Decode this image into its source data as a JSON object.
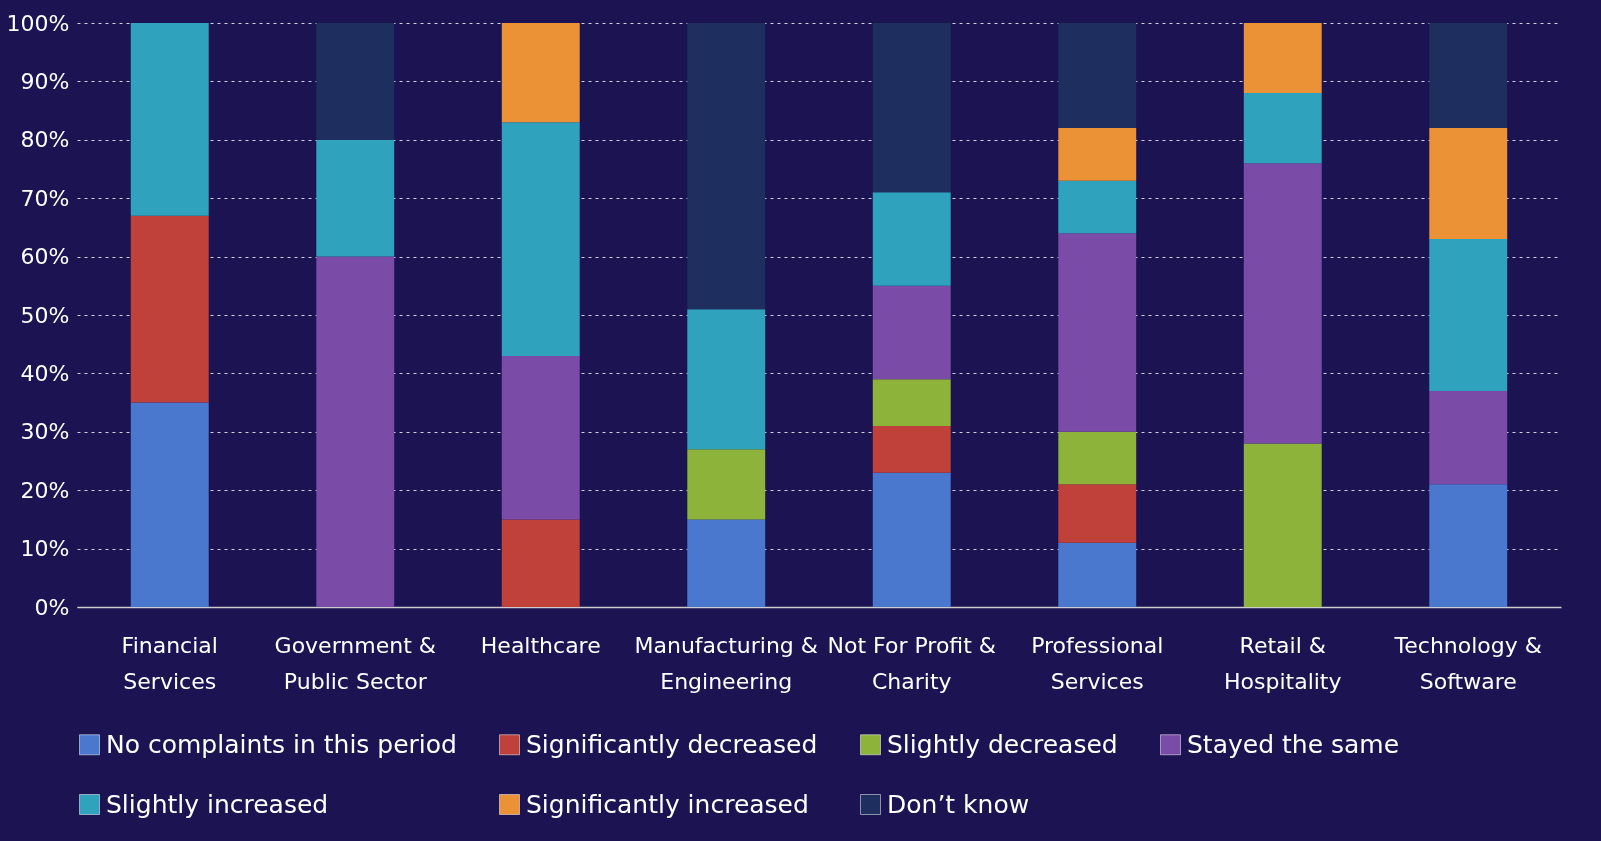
{
  "chart_data": {
    "type": "bar",
    "stacked": true,
    "categories": [
      "Financial Services",
      "Government & Public Sector",
      "Healthcare",
      "Manufacturing & Engineering",
      "Not For Profit & Charity",
      "Professional Services",
      "Retail & Hospitality",
      "Technology & Software"
    ],
    "series": [
      {
        "name": "No complaints in this period",
        "color": "#4a78cf",
        "values": [
          35,
          0,
          0,
          15,
          23,
          11,
          0,
          21
        ]
      },
      {
        "name": "Significantly decreased",
        "color": "#c0403a",
        "values": [
          32,
          0,
          15,
          0,
          8,
          10,
          0,
          0
        ]
      },
      {
        "name": "Slightly decreased",
        "color": "#8db33a",
        "values": [
          0,
          0,
          0,
          12,
          8,
          9,
          28,
          0
        ]
      },
      {
        "name": "Stayed the same",
        "color": "#7a4ca8",
        "values": [
          0,
          60,
          28,
          0,
          16,
          34,
          48,
          16
        ]
      },
      {
        "name": "Slightly increased",
        "color": "#2fa3bd",
        "values": [
          33,
          20,
          40,
          24,
          16,
          9,
          12,
          26
        ]
      },
      {
        "name": "Significantly increased",
        "color": "#ea9235",
        "values": [
          0,
          0,
          17,
          0,
          0,
          9,
          12,
          19
        ]
      },
      {
        "name": "Don’t know",
        "color": "#1e2e5e",
        "values": [
          0,
          20,
          0,
          49,
          29,
          18,
          0,
          18
        ]
      }
    ],
    "ylim": [
      0,
      100
    ],
    "yticks": [
      {
        "value": 0,
        "label": "0%"
      },
      {
        "value": 10,
        "label": "10%"
      },
      {
        "value": 20,
        "label": "20%"
      },
      {
        "value": 30,
        "label": "30%"
      },
      {
        "value": 40,
        "label": "40%"
      },
      {
        "value": 50,
        "label": "50%"
      },
      {
        "value": 60,
        "label": "60%"
      },
      {
        "value": 70,
        "label": "70%"
      },
      {
        "value": 80,
        "label": "80%"
      },
      {
        "value": 90,
        "label": "90%"
      },
      {
        "value": 100,
        "label": "100%"
      }
    ],
    "grid": "y",
    "legend": "bottom"
  }
}
